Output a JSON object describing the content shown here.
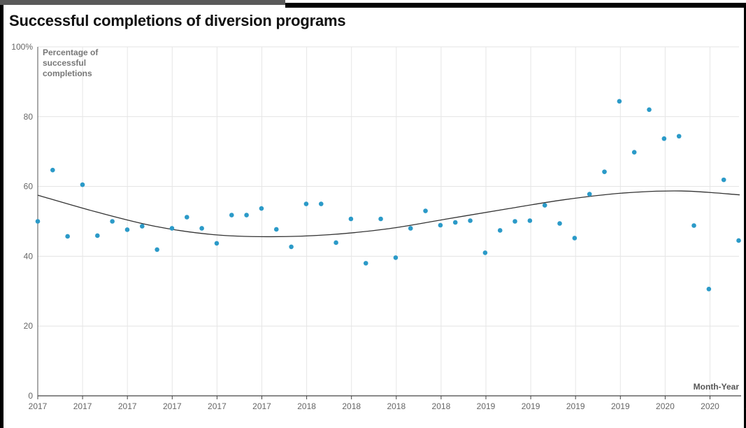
{
  "chart_data": {
    "type": "scatter",
    "title": "Successful completions of diversion programs",
    "ylabel": "Percentage of successful completions",
    "xlabel": "Month-Year",
    "ylim": [
      0,
      100
    ],
    "yticks": [
      "0",
      "20",
      "40",
      "60",
      "80",
      "100%"
    ],
    "x_tick_labels": [
      "2017",
      "2017",
      "2017",
      "2017",
      "2017",
      "2017",
      "2018",
      "2018",
      "2018",
      "2018",
      "2019",
      "2019",
      "2019",
      "2019",
      "2020",
      "2020",
      "2020",
      "2020"
    ],
    "grid": true,
    "point_color": "#2b9ac8",
    "trendline": {
      "color": "#333333",
      "values": [
        57.5,
        52.7,
        48.6,
        46.2,
        45.6,
        46.2,
        47.9,
        50.7,
        53.5,
        56.2,
        58.1,
        58.7,
        57.6
      ]
    },
    "series": [
      {
        "values": [
          50.0,
          64.7,
          45.7,
          60.5,
          45.9,
          50.0,
          47.6,
          48.6,
          41.9,
          48.0,
          51.2,
          48.0,
          43.7,
          51.8,
          51.8,
          53.7,
          47.7,
          42.7,
          55.0,
          55.0,
          43.9,
          50.7,
          38.0,
          50.7,
          39.6,
          48.0,
          53.0,
          48.9,
          49.7,
          50.2,
          41.0,
          47.4,
          50.0,
          50.2,
          54.6,
          49.4,
          45.2,
          57.8,
          64.2,
          84.4,
          69.8,
          82.0,
          73.7,
          74.4,
          48.8,
          30.6,
          61.9,
          44.5
        ]
      }
    ]
  }
}
